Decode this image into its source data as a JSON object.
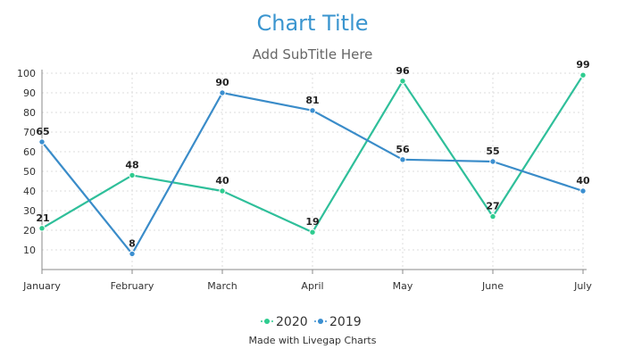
{
  "chart_data": {
    "type": "line",
    "title": "Chart Title",
    "subtitle": "Add SubTitle Here",
    "xlabel": "",
    "ylabel": "",
    "categories": [
      "January",
      "February",
      "March",
      "April",
      "May",
      "June",
      "July"
    ],
    "ylim": [
      0,
      100
    ],
    "yticks": [
      10,
      20,
      30,
      40,
      50,
      60,
      70,
      80,
      90,
      100
    ],
    "grid": true,
    "legend_position": "bottom",
    "series": [
      {
        "name": "2020",
        "color": "#2ecc8f",
        "line_color": "#2fbf9a",
        "values": [
          21,
          48,
          40,
          19,
          96,
          27,
          99
        ]
      },
      {
        "name": "2019",
        "color": "#3b8fd0",
        "line_color": "#3a8cc9",
        "values": [
          65,
          8,
          90,
          81,
          56,
          55,
          40
        ]
      }
    ],
    "footer": "Made with Livegap Charts",
    "colors": {
      "title": "#3a95cf",
      "subtitle": "#666666",
      "axis": "#333333",
      "grid": "#dddddd"
    }
  }
}
